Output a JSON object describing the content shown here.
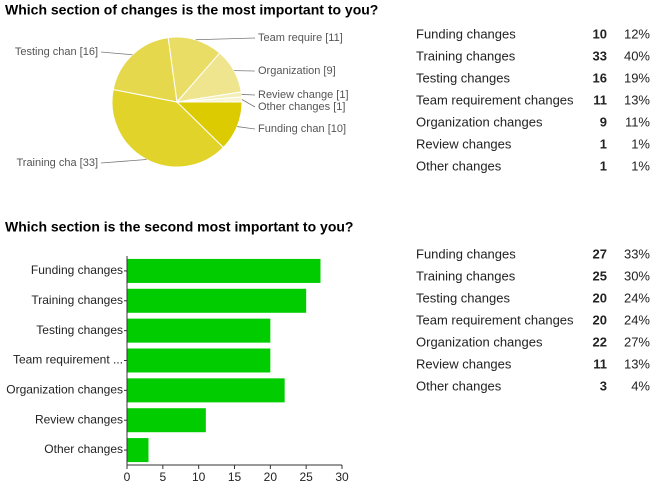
{
  "chart_data": [
    {
      "type": "pie",
      "title": "Which section of changes is the most important to you?",
      "categories": [
        "Funding changes",
        "Training changes",
        "Testing changes",
        "Team requirement changes",
        "Organization changes",
        "Review changes",
        "Other changes"
      ],
      "values": [
        10,
        33,
        16,
        11,
        9,
        1,
        1
      ],
      "value_labels": [
        "Funding chan [10]",
        "Training cha [33]",
        "Testing chan [16]",
        "Team require [11]",
        "Organization  [9]",
        "Review change [1]",
        "Other changes [1]"
      ],
      "percent_values": [
        12,
        40,
        19,
        13,
        11,
        1,
        1
      ],
      "percent_labels": [
        "12%",
        "40%",
        "19%",
        "13%",
        "11%",
        "1%",
        "1%"
      ],
      "colors": [
        "#dccb00",
        "#e2d32a",
        "#e6d84c",
        "#eadd66",
        "#efe58e",
        "#f4eeb8",
        "#f8f4d4"
      ]
    },
    {
      "type": "bar",
      "title": "Which section is the second most important to you?",
      "categories": [
        "Funding changes",
        "Training changes",
        "Testing changes",
        "Team requirement changes",
        "Organization changes",
        "Review changes",
        "Other changes"
      ],
      "bar_labels": [
        "Funding changes",
        "Training changes",
        "Testing changes",
        "Team requirement ...",
        "Organization changes",
        "Review changes",
        "Other changes"
      ],
      "values": [
        27,
        25,
        20,
        20,
        22,
        11,
        3
      ],
      "percent_values": [
        33,
        30,
        24,
        24,
        27,
        13,
        4
      ],
      "percent_labels": [
        "33%",
        "30%",
        "24%",
        "24%",
        "27%",
        "13%",
        "4%"
      ],
      "color": "#00cc00",
      "xlim": [
        0,
        30
      ],
      "xticks": [
        0,
        5,
        10,
        15,
        20,
        25,
        30
      ]
    }
  ]
}
